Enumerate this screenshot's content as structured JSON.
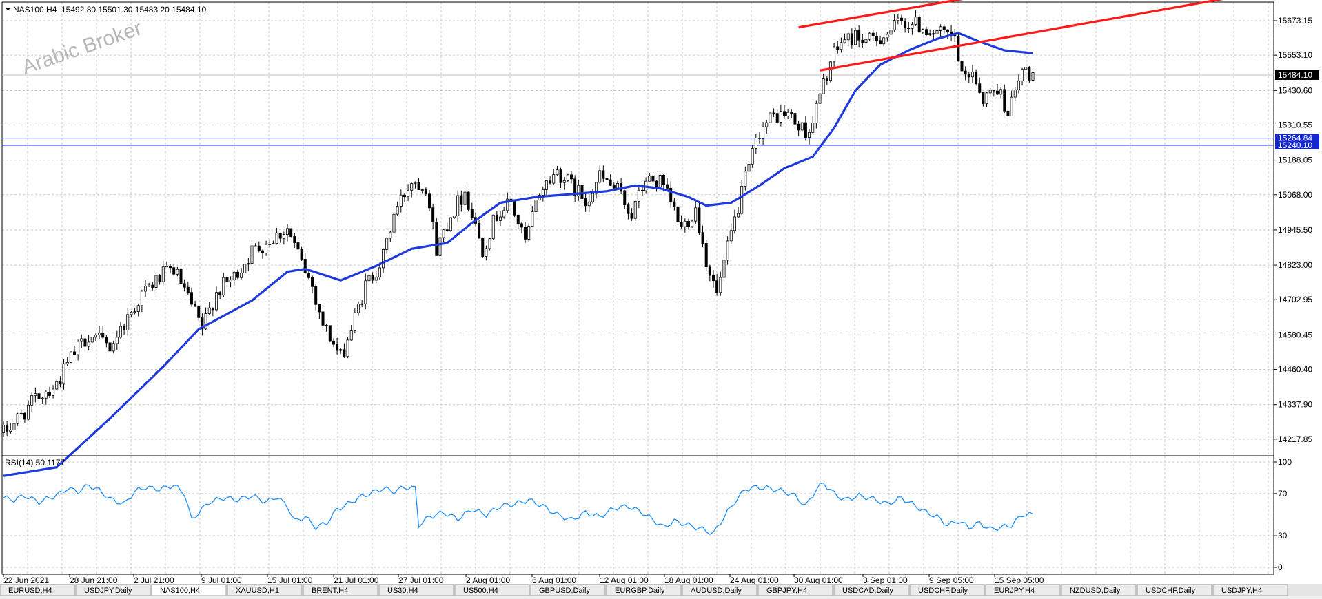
{
  "window": {
    "symbol_header": "NAS100,H4",
    "ohlc_header": "15492.80 15501.30 15483.20 15484.10",
    "watermark": "Arabic Broker"
  },
  "colors": {
    "background": "#ffffff",
    "grid": "#c8c8c8",
    "candle": "#000000",
    "moving_average": "#1e3adc",
    "channel": "#ff1a1a",
    "horizontal_lines": "#1428d0",
    "rsi_line": "#1e90ff",
    "label_box": "#000000",
    "hline_box": "#1428d0",
    "label_text": "#ffffff",
    "tab_bar": "#e4e4e4"
  },
  "chart_data": [
    {
      "type": "candlestick",
      "title": "NAS100,H4",
      "ylim": [
        14160,
        15690
      ],
      "yticks": [
        15673.15,
        15553.1,
        15430.6,
        15310.55,
        15188.05,
        15068.0,
        14945.5,
        14823.0,
        14702.95,
        14580.45,
        14460.4,
        14337.9,
        14217.85
      ],
      "current_price": 15484.1,
      "horizontal_levels": [
        15264.84,
        15240.1
      ],
      "xticks": [
        "22 Jun 2021",
        "28 Jun 21:00",
        "2 Jul 21:00",
        "9 Jul 01:00",
        "15 Jul 01:00",
        "21 Jul 01:00",
        "27 Jul 01:00",
        "2 Aug 01:00",
        "6 Aug 01:00",
        "12 Aug 01:00",
        "18 Aug 01:00",
        "24 Aug 01:00",
        "30 Aug 01:00",
        "3 Sep 01:00",
        "9 Sep 05:00",
        "15 Sep 05:00"
      ],
      "close_path": [
        [
          0,
          14240
        ],
        [
          5,
          14300
        ],
        [
          10,
          14370
        ],
        [
          15,
          14410
        ],
        [
          19,
          14500
        ],
        [
          24,
          14580
        ],
        [
          30,
          14540
        ],
        [
          34,
          14620
        ],
        [
          39,
          14720
        ],
        [
          44,
          14780
        ],
        [
          48,
          14810
        ],
        [
          53,
          14680
        ],
        [
          56,
          14600
        ],
        [
          60,
          14730
        ],
        [
          65,
          14780
        ],
        [
          70,
          14870
        ],
        [
          75,
          14910
        ],
        [
          80,
          14950
        ],
        [
          84,
          14830
        ],
        [
          87,
          14750
        ],
        [
          90,
          14620
        ],
        [
          95,
          14500
        ],
        [
          98,
          14600
        ],
        [
          102,
          14750
        ],
        [
          107,
          14850
        ],
        [
          110,
          15000
        ],
        [
          115,
          15120
        ],
        [
          119,
          15100
        ],
        [
          122,
          14880
        ],
        [
          126,
          15000
        ],
        [
          130,
          15080
        ],
        [
          135,
          14880
        ],
        [
          139,
          15000
        ],
        [
          143,
          15040
        ],
        [
          147,
          14900
        ],
        [
          151,
          15080
        ],
        [
          156,
          15150
        ],
        [
          160,
          15100
        ],
        [
          164,
          15050
        ],
        [
          168,
          15130
        ],
        [
          173,
          15080
        ],
        [
          177,
          15000
        ],
        [
          181,
          15120
        ],
        [
          185,
          15110
        ],
        [
          188,
          15040
        ],
        [
          191,
          14950
        ],
        [
          195,
          15020
        ],
        [
          198,
          14840
        ],
        [
          201,
          14720
        ],
        [
          205,
          14930
        ],
        [
          209,
          15120
        ],
        [
          213,
          15290
        ],
        [
          217,
          15340
        ],
        [
          221,
          15350
        ],
        [
          224,
          15300
        ],
        [
          227,
          15290
        ],
        [
          230,
          15410
        ],
        [
          233,
          15530
        ],
        [
          236,
          15600
        ],
        [
          240,
          15620
        ],
        [
          244,
          15600
        ],
        [
          249,
          15630
        ],
        [
          253,
          15670
        ],
        [
          257,
          15660
        ],
        [
          261,
          15640
        ],
        [
          265,
          15620
        ],
        [
          268,
          15610
        ],
        [
          270,
          15470
        ],
        [
          273,
          15500
        ],
        [
          276,
          15400
        ],
        [
          280,
          15440
        ],
        [
          283,
          15360
        ],
        [
          285,
          15420
        ],
        [
          287,
          15500
        ],
        [
          290,
          15484
        ]
      ],
      "series": [
        {
          "name": "",
          "values": [
            [
              0,
              14090
            ],
            [
              15,
              14120
            ],
            [
              30,
              14290
            ],
            [
              45,
              14470
            ],
            [
              55,
              14600
            ],
            [
              70,
              14700
            ],
            [
              80,
              14800
            ],
            [
              85,
              14810
            ],
            [
              95,
              14770
            ],
            [
              105,
              14820
            ],
            [
              115,
              14880
            ],
            [
              125,
              14900
            ],
            [
              132,
              14970
            ],
            [
              140,
              15040
            ],
            [
              150,
              15060
            ],
            [
              160,
              15070
            ],
            [
              170,
              15080
            ],
            [
              178,
              15100
            ],
            [
              185,
              15090
            ],
            [
              193,
              15060
            ],
            [
              198,
              15030
            ],
            [
              205,
              15040
            ],
            [
              213,
              15100
            ],
            [
              220,
              15160
            ],
            [
              228,
              15200
            ],
            [
              234,
              15300
            ],
            [
              240,
              15430
            ],
            [
              247,
              15520
            ],
            [
              255,
              15570
            ],
            [
              263,
              15610
            ],
            [
              269,
              15630
            ],
            [
              275,
              15600
            ],
            [
              282,
              15570
            ],
            [
              290,
              15560
            ]
          ]
        }
      ],
      "channel_lines": [
        {
          "x1": 224,
          "y1": 15650,
          "x2": 285,
          "y2": 15780
        },
        {
          "x1": 230,
          "y1": 15500,
          "x2": 362,
          "y2": 15780
        }
      ],
      "grid": true
    },
    {
      "type": "line",
      "title": "RSI(14) 50.1177",
      "ylim": [
        0,
        100
      ],
      "yticks": [
        100,
        70,
        30,
        0
      ],
      "series": [
        {
          "name": "RSI(14)",
          "values": [
            [
              0,
              66
            ],
            [
              3,
              64
            ],
            [
              6,
              68
            ],
            [
              10,
              62
            ],
            [
              13,
              66
            ],
            [
              16,
              70
            ],
            [
              18,
              75
            ],
            [
              21,
              72
            ],
            [
              24,
              78
            ],
            [
              27,
              73
            ],
            [
              30,
              65
            ],
            [
              34,
              60
            ],
            [
              37,
              72
            ],
            [
              40,
              76
            ],
            [
              44,
              74
            ],
            [
              48,
              78
            ],
            [
              51,
              70
            ],
            [
              53,
              45
            ],
            [
              55,
              52
            ],
            [
              58,
              62
            ],
            [
              62,
              66
            ],
            [
              66,
              64
            ],
            [
              70,
              68
            ],
            [
              74,
              62
            ],
            [
              77,
              67
            ],
            [
              80,
              58
            ],
            [
              82,
              44
            ],
            [
              85,
              48
            ],
            [
              88,
              38
            ],
            [
              91,
              42
            ],
            [
              94,
              55
            ],
            [
              97,
              60
            ],
            [
              100,
              66
            ],
            [
              104,
              71
            ],
            [
              107,
              75
            ],
            [
              110,
              72
            ],
            [
              113,
              76
            ],
            [
              116,
              75
            ],
            [
              117,
              40
            ],
            [
              120,
              48
            ],
            [
              124,
              52
            ],
            [
              128,
              46
            ],
            [
              132,
              55
            ],
            [
              136,
              50
            ],
            [
              140,
              58
            ],
            [
              144,
              60
            ],
            [
              148,
              64
            ],
            [
              152,
              58
            ],
            [
              156,
              50
            ],
            [
              160,
              45
            ],
            [
              164,
              52
            ],
            [
              168,
              48
            ],
            [
              172,
              56
            ],
            [
              176,
              58
            ],
            [
              180,
              52
            ],
            [
              183,
              45
            ],
            [
              186,
              38
            ],
            [
              189,
              44
            ],
            [
              193,
              40
            ],
            [
              197,
              36
            ],
            [
              200,
              32
            ],
            [
              203,
              48
            ],
            [
              206,
              62
            ],
            [
              209,
              74
            ],
            [
              212,
              76
            ],
            [
              216,
              75
            ],
            [
              220,
              72
            ],
            [
              223,
              68
            ],
            [
              226,
              58
            ],
            [
              229,
              74
            ],
            [
              231,
              80
            ],
            [
              234,
              70
            ],
            [
              237,
              64
            ],
            [
              241,
              68
            ],
            [
              245,
              65
            ],
            [
              249,
              60
            ],
            [
              253,
              66
            ],
            [
              256,
              60
            ],
            [
              260,
              52
            ],
            [
              263,
              48
            ],
            [
              266,
              40
            ],
            [
              269,
              44
            ],
            [
              272,
              38
            ],
            [
              275,
              42
            ],
            [
              278,
              36
            ],
            [
              281,
              38
            ],
            [
              284,
              40
            ],
            [
              287,
              50
            ],
            [
              290,
              50
            ]
          ]
        }
      ],
      "grid": true
    }
  ],
  "tabs": [
    "EURUSD,H4",
    "USDJPY,Daily",
    "NAS100,H4",
    "XAUUSD,H1",
    "BRENT,H4",
    "US30,H4",
    "US500,H4",
    "GBPUSD,Daily",
    "EURGBP,Daily",
    "AUDUSD,Daily",
    "GBPJPY,H4",
    "USDCAD,Daily",
    "USDCHF,Daily",
    "EURJPY,H4",
    "NZDUSD,Daily",
    "USDCHF,Daily",
    "USDJPY,H4"
  ],
  "active_tab_index": 2
}
